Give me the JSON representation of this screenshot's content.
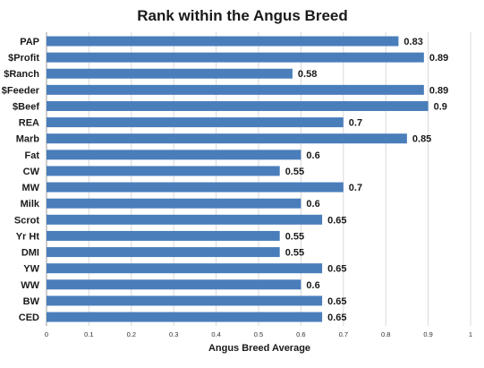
{
  "chart_data": {
    "type": "bar",
    "orientation": "horizontal",
    "title": "Rank within the Angus Breed",
    "xlabel": "Angus Breed Average",
    "ylabel": "",
    "categories": [
      "PAP",
      "$Profit",
      "$Ranch",
      "$Feeder",
      "$Beef",
      "REA",
      "Marb",
      "Fat",
      "CW",
      "MW",
      "Milk",
      "Scrot",
      "Yr Ht",
      "DMI",
      "YW",
      "WW",
      "BW",
      "CED"
    ],
    "values": [
      0.83,
      0.89,
      0.58,
      0.89,
      0.9,
      0.7,
      0.85,
      0.6,
      0.55,
      0.7,
      0.6,
      0.65,
      0.55,
      0.55,
      0.65,
      0.6,
      0.65,
      0.65
    ],
    "value_labels": [
      "0.83",
      "0.89",
      "0.58",
      "0.89",
      "0.9",
      "0.7",
      "0.85",
      "0.6",
      "0.55",
      "0.7",
      "0.6",
      "0.65",
      "0.55",
      "0.55",
      "0.65",
      "0.6",
      "0.65",
      "0.65"
    ],
    "xlim": [
      0,
      1
    ],
    "xticks": [
      0,
      0.1,
      0.2,
      0.3,
      0.4,
      0.5,
      0.6,
      0.7,
      0.8,
      0.9,
      1
    ],
    "xtick_labels": [
      "0",
      "0.1",
      "0.2",
      "0.3",
      "0.4",
      "0.5",
      "0.6",
      "0.7",
      "0.8",
      "0.9",
      "1"
    ],
    "grid": true,
    "legend": "none",
    "bar_color": "#4a7ebb"
  }
}
